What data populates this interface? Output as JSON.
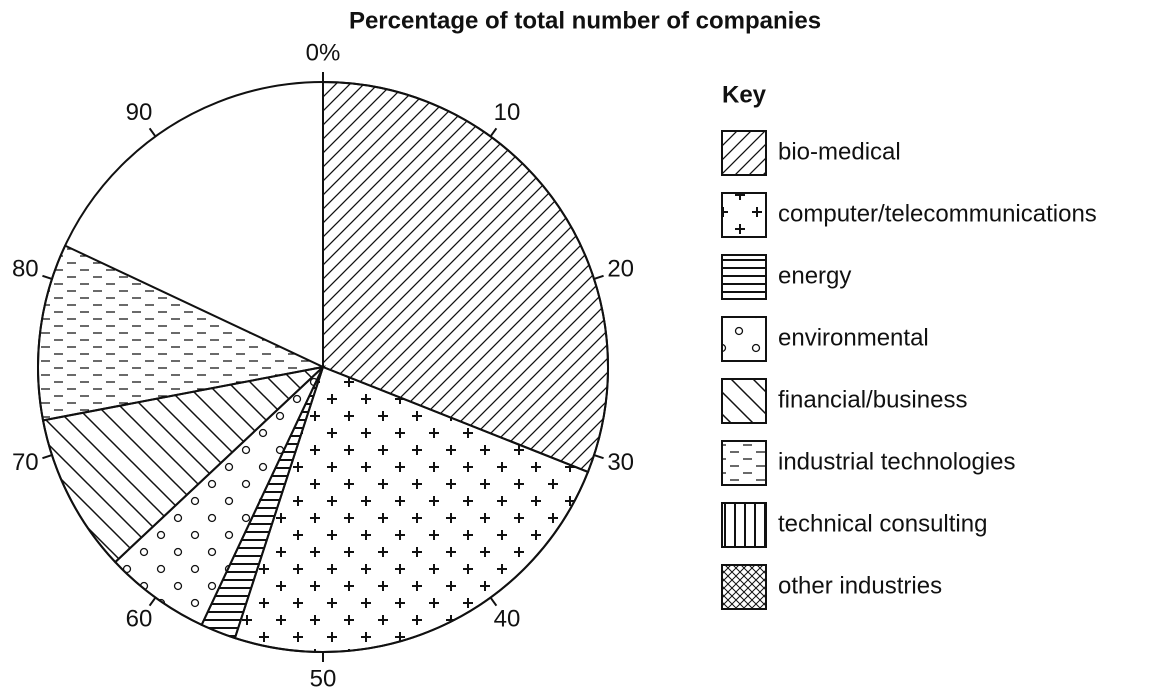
{
  "chart_data": {
    "type": "pie",
    "title": "Percentage of total number of companies",
    "legend_title": "Key",
    "categories": [
      "bio-medical",
      "computer/telecommunications",
      "energy",
      "environmental",
      "financial/business",
      "industrial technologies",
      "technical consulting",
      "other industries"
    ],
    "values": [
      31,
      24,
      2,
      6,
      9,
      10,
      null,
      null
    ],
    "ticks": [
      {
        "value": 0,
        "label": "0%"
      },
      10,
      20,
      30,
      40,
      50,
      60,
      70,
      80,
      90
    ],
    "legend": "right"
  }
}
